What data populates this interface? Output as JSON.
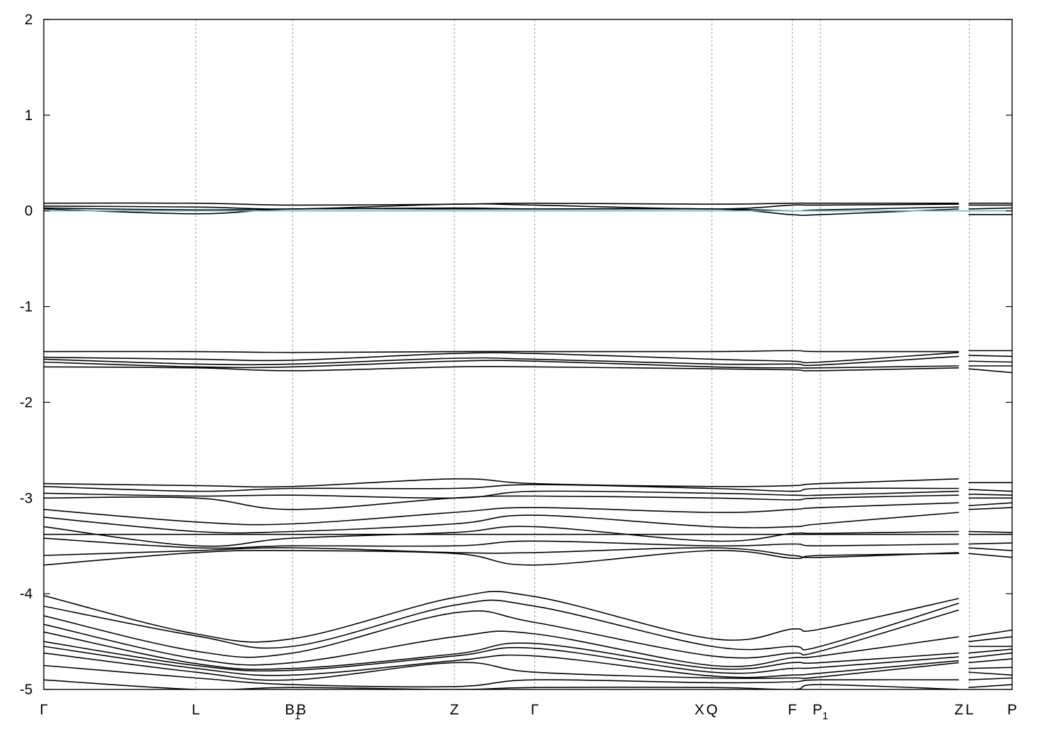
{
  "chart_data": {
    "type": "line",
    "title": "",
    "xlabel": "",
    "ylabel": "",
    "ylim": [
      -5,
      2
    ],
    "yticks": [
      "2",
      "1",
      "0",
      "-1",
      "-2",
      "-3",
      "-4",
      "-5"
    ],
    "fermi_level": 0,
    "fermi_color": "#5fb8c4",
    "grid": false,
    "legend": "none",
    "kpoints": [
      {
        "pos": 0.0,
        "label": "Γ",
        "sub": "",
        "line": false
      },
      {
        "pos": 0.157,
        "label": "L",
        "sub": "",
        "line": true
      },
      {
        "pos": 0.257,
        "label": "B",
        "sub": "1",
        "line": true
      },
      {
        "pos": 0.266,
        "label": "B",
        "sub": "",
        "line": false
      },
      {
        "pos": 0.424,
        "label": "Z",
        "sub": "",
        "line": true
      },
      {
        "pos": 0.507,
        "label": "Γ",
        "sub": "",
        "line": true
      },
      {
        "pos": 0.677,
        "label": "X",
        "sub": "",
        "line": false
      },
      {
        "pos": 0.69,
        "label": "Q",
        "sub": "",
        "line": true
      },
      {
        "pos": 0.773,
        "label": "F",
        "sub": "",
        "line": true
      },
      {
        "pos": 0.802,
        "label": "P",
        "sub": "1",
        "line": true
      },
      {
        "pos": 0.945,
        "label": "Z",
        "sub": "",
        "line": false
      },
      {
        "pos": 0.956,
        "label": "L",
        "sub": "",
        "line": true
      },
      {
        "pos": 1.0,
        "label": "P",
        "sub": "",
        "line": false
      }
    ],
    "x": [
      0.0,
      0.157,
      0.257,
      0.424,
      0.507,
      0.69,
      0.773,
      0.802,
      0.945
    ],
    "x_tail": [
      0.955,
      1.0
    ],
    "series": [
      {
        "values": [
          0.08,
          0.08,
          0.06,
          0.07,
          0.08,
          0.07,
          0.08,
          0.08,
          0.08
        ],
        "tail": [
          0.08,
          0.08
        ]
      },
      {
        "values": [
          0.05,
          0.04,
          0.02,
          0.07,
          0.06,
          0.02,
          0.06,
          0.06,
          0.07
        ],
        "tail": [
          0.06,
          0.06
        ]
      },
      {
        "values": [
          0.03,
          0.01,
          0.02,
          0.03,
          0.02,
          0.02,
          0.0,
          0.01,
          0.04
        ],
        "tail": [
          0.02,
          0.03
        ]
      },
      {
        "values": [
          0.02,
          -0.03,
          0.02,
          0.02,
          0.02,
          0.02,
          -0.04,
          -0.04,
          0.02
        ],
        "tail": [
          -0.04,
          -0.04
        ]
      },
      {
        "values": [
          -1.47,
          -1.47,
          -1.48,
          -1.47,
          -1.47,
          -1.47,
          -1.46,
          -1.47,
          -1.47
        ],
        "tail": [
          -1.46,
          -1.46
        ]
      },
      {
        "values": [
          -1.53,
          -1.55,
          -1.56,
          -1.49,
          -1.49,
          -1.55,
          -1.57,
          -1.58,
          -1.48
        ],
        "tail": [
          -1.51,
          -1.52
        ]
      },
      {
        "values": [
          -1.55,
          -1.6,
          -1.6,
          -1.54,
          -1.55,
          -1.6,
          -1.6,
          -1.61,
          -1.52
        ],
        "tail": [
          -1.57,
          -1.58
        ]
      },
      {
        "values": [
          -1.58,
          -1.63,
          -1.63,
          -1.57,
          -1.57,
          -1.63,
          -1.64,
          -1.64,
          -1.62
        ],
        "tail": [
          -1.62,
          -1.62
        ]
      },
      {
        "values": [
          -1.63,
          -1.64,
          -1.67,
          -1.63,
          -1.63,
          -1.65,
          -1.66,
          -1.67,
          -1.64
        ],
        "tail": [
          -1.65,
          -1.69
        ]
      },
      {
        "values": [
          -2.85,
          -2.87,
          -2.88,
          -2.8,
          -2.85,
          -2.88,
          -2.87,
          -2.85,
          -2.8
        ],
        "tail": [
          -2.84,
          -2.84
        ]
      },
      {
        "values": [
          -2.88,
          -2.93,
          -2.9,
          -2.9,
          -2.86,
          -2.9,
          -2.93,
          -2.9,
          -2.9
        ],
        "tail": [
          -2.91,
          -2.93
        ]
      },
      {
        "values": [
          -2.95,
          -2.98,
          -2.97,
          -3.0,
          -2.93,
          -2.95,
          -2.97,
          -2.97,
          -2.93
        ],
        "tail": [
          -2.96,
          -2.97
        ]
      },
      {
        "values": [
          -3.0,
          -3.0,
          -3.12,
          -3.0,
          -2.98,
          -3.0,
          -3.02,
          -3.0,
          -2.97
        ],
        "tail": [
          -3.0,
          -3.0
        ]
      },
      {
        "values": [
          -3.12,
          -3.25,
          -3.27,
          -3.15,
          -3.1,
          -3.15,
          -3.12,
          -3.1,
          -3.05
        ],
        "tail": [
          -3.08,
          -3.05
        ]
      },
      {
        "values": [
          -3.2,
          -3.35,
          -3.35,
          -3.27,
          -3.18,
          -3.3,
          -3.3,
          -3.27,
          -3.15
        ],
        "tail": [
          -3.12,
          -3.1
        ]
      },
      {
        "values": [
          -3.3,
          -3.5,
          -3.42,
          -3.36,
          -3.3,
          -3.45,
          -3.37,
          -3.37,
          -3.35
        ],
        "tail": [
          -3.35,
          -3.36
        ]
      },
      {
        "values": [
          -3.38,
          -3.38,
          -3.38,
          -3.38,
          -3.38,
          -3.38,
          -3.38,
          -3.38,
          -3.38
        ],
        "tail": [
          -3.38,
          -3.38
        ]
      },
      {
        "values": [
          -3.42,
          -3.52,
          -3.5,
          -3.5,
          -3.45,
          -3.5,
          -3.48,
          -3.5,
          -3.48
        ],
        "tail": [
          -3.48,
          -3.47
        ]
      },
      {
        "values": [
          -3.6,
          -3.55,
          -3.52,
          -3.57,
          -3.57,
          -3.52,
          -3.6,
          -3.62,
          -3.57
        ],
        "tail": [
          -3.52,
          -3.55
        ]
      },
      {
        "values": [
          -3.7,
          -3.57,
          -3.55,
          -3.58,
          -3.7,
          -3.55,
          -3.63,
          -3.6,
          -3.58
        ],
        "tail": [
          -3.58,
          -3.62
        ]
      },
      {
        "values": [
          -4.02,
          -4.42,
          -4.47,
          -4.04,
          -4.03,
          -4.47,
          -4.37,
          -4.37,
          -4.05
        ],
        "tail": [
          -4.45,
          -4.38
        ]
      },
      {
        "values": [
          -4.13,
          -4.44,
          -4.55,
          -4.12,
          -4.13,
          -4.55,
          -4.55,
          -4.55,
          -4.1
        ],
        "tail": [
          -4.5,
          -4.45
        ]
      },
      {
        "values": [
          -4.23,
          -4.6,
          -4.62,
          -4.2,
          -4.3,
          -4.65,
          -4.62,
          -4.6,
          -4.17
        ],
        "tail": [
          -4.55,
          -4.55
        ]
      },
      {
        "values": [
          -4.32,
          -4.68,
          -4.72,
          -4.45,
          -4.42,
          -4.75,
          -4.67,
          -4.65,
          -4.45
        ],
        "tail": [
          -4.62,
          -4.58
        ]
      },
      {
        "values": [
          -4.4,
          -4.73,
          -4.78,
          -4.63,
          -4.52,
          -4.78,
          -4.72,
          -4.72,
          -4.62
        ],
        "tail": [
          -4.67,
          -4.62
        ]
      },
      {
        "values": [
          -4.5,
          -4.75,
          -4.8,
          -4.65,
          -4.57,
          -4.82,
          -4.78,
          -4.77,
          -4.66
        ],
        "tail": [
          -4.72,
          -4.68
        ]
      },
      {
        "values": [
          -4.55,
          -4.78,
          -4.85,
          -4.7,
          -4.65,
          -4.86,
          -4.85,
          -4.83,
          -4.7
        ],
        "tail": [
          -4.78,
          -4.77
        ]
      },
      {
        "values": [
          -4.62,
          -4.82,
          -4.9,
          -4.72,
          -4.82,
          -4.88,
          -4.88,
          -4.87,
          -4.72
        ],
        "tail": [
          -4.82,
          -4.85
        ]
      },
      {
        "values": [
          -4.75,
          -4.88,
          -4.95,
          -4.97,
          -4.9,
          -4.93,
          -4.92,
          -4.9,
          -4.9
        ],
        "tail": [
          -4.9,
          -4.88
        ]
      },
      {
        "values": [
          -4.9,
          -5.0,
          -4.98,
          -5.0,
          -4.98,
          -4.98,
          -5.0,
          -4.95,
          -5.0
        ],
        "tail": [
          -4.98,
          -4.95
        ]
      }
    ]
  }
}
